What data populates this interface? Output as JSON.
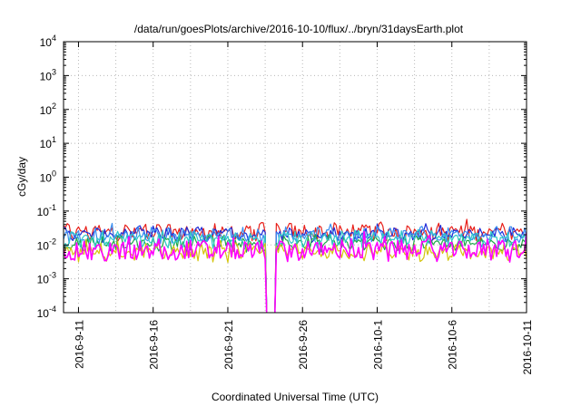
{
  "chart_data": {
    "type": "line",
    "title": "/data/run/goesPlots/archive/2016-10-10/flux/../bryn/31daysEarth.plot",
    "xlabel": "Coordinated Universal Time (UTC)",
    "ylabel": "cGy/day",
    "yscale": "log",
    "ylim": [
      0.0001,
      10000
    ],
    "xlim": [
      "2016-09-10",
      "2016-10-11"
    ],
    "grid": true,
    "legend": "none",
    "x_ticks": [
      "2016-9-11",
      "2016-9-16",
      "2016-9-21",
      "2016-9-26",
      "2016-10-1",
      "2016-10-6",
      "2016-10-11"
    ],
    "y_ticks": [
      {
        "base": "10",
        "exp": "-4"
      },
      {
        "base": "10",
        "exp": "-3"
      },
      {
        "base": "10",
        "exp": "-2"
      },
      {
        "base": "10",
        "exp": "-1"
      },
      {
        "base": "10",
        "exp": "0"
      },
      {
        "base": "10",
        "exp": "1"
      },
      {
        "base": "10",
        "exp": "2"
      },
      {
        "base": "10",
        "exp": "3"
      },
      {
        "base": "10",
        "exp": "4"
      }
    ],
    "data_gap": [
      "2016-09-23T12:00",
      "2016-09-24T06:00"
    ],
    "series": [
      {
        "color": "#e8201a",
        "level": 0.024,
        "spread": 0.22,
        "spike": 0.038
      },
      {
        "color": "#1f2bd8",
        "level": 0.021,
        "spread": 0.18,
        "spike": 0.03
      },
      {
        "color": "#3a8ef0",
        "level": 0.019,
        "spread": 0.2,
        "spike": 0.032
      },
      {
        "color": "#1fa84a",
        "level": 0.011,
        "spread": 0.18,
        "spike": 0.016
      },
      {
        "color": "#2ec8c8",
        "level": 0.014,
        "spread": 0.2,
        "spike": 0.02
      },
      {
        "color": "#d4c40c",
        "level": 0.006,
        "spread": 0.22,
        "spike": 0.009
      },
      {
        "color": "#ff00ff",
        "level": 0.0068,
        "spread": 0.3,
        "spike": 0.016
      }
    ]
  }
}
